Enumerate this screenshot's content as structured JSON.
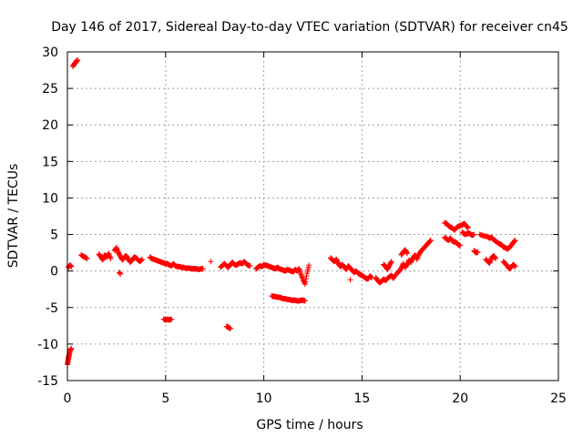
{
  "chart_data": {
    "type": "scatter",
    "title": "Day 146 of 2017, Sidereal Day-to-day VTEC variation (SDTVAR) for receiver cn45",
    "xlabel": "GPS time / hours",
    "ylabel": "SDTVAR / TECUs",
    "xlim": [
      0,
      25
    ],
    "ylim": [
      -15,
      30
    ],
    "xticks": [
      0,
      5,
      10,
      15,
      20,
      25
    ],
    "yticks": [
      -15,
      -10,
      -5,
      0,
      5,
      10,
      15,
      20,
      25,
      30
    ],
    "grid": true,
    "legend": "none",
    "marker": "+",
    "color": "#ff0000",
    "series": [
      {
        "name": "SDTVAR",
        "segments": [
          [
            [
              0.0,
              -12.8
            ],
            [
              0.03,
              -12.3
            ],
            [
              0.06,
              -11.8
            ],
            [
              0.1,
              -11.3
            ],
            [
              0.15,
              -10.8
            ],
            [
              0.2,
              -10.6
            ]
          ],
          [
            [
              0.05,
              0.5
            ],
            [
              0.1,
              0.7
            ],
            [
              0.15,
              0.8
            ],
            [
              0.2,
              0.6
            ]
          ],
          [
            [
              0.28,
              28.0
            ],
            [
              0.34,
              28.3
            ],
            [
              0.4,
              28.5
            ],
            [
              0.46,
              28.7
            ],
            [
              0.52,
              28.9
            ]
          ],
          [
            [
              0.7,
              2.2
            ],
            [
              0.8,
              2.0
            ],
            [
              0.9,
              1.9
            ],
            [
              1.0,
              1.7
            ]
          ],
          [
            [
              1.6,
              2.3
            ],
            [
              1.7,
              2.0
            ],
            [
              1.8,
              1.5
            ],
            [
              1.9,
              2.2
            ],
            [
              2.0,
              1.9
            ],
            [
              2.1,
              2.4
            ],
            [
              2.2,
              1.7
            ]
          ],
          [
            [
              2.4,
              2.8
            ],
            [
              2.5,
              3.2
            ],
            [
              2.6,
              2.5
            ],
            [
              2.7,
              2.0
            ],
            [
              2.8,
              1.5
            ],
            [
              2.9,
              1.9
            ],
            [
              3.0,
              2.1
            ],
            [
              3.1,
              1.6
            ],
            [
              3.2,
              1.2
            ],
            [
              3.3,
              1.5
            ],
            [
              3.4,
              1.9
            ],
            [
              3.5,
              1.8
            ],
            [
              3.6,
              1.5
            ],
            [
              3.7,
              1.3
            ],
            [
              3.8,
              1.6
            ]
          ],
          [
            [
              2.65,
              -0.2
            ],
            [
              2.7,
              -0.4
            ]
          ],
          [
            [
              4.2,
              1.9
            ],
            [
              4.3,
              1.7
            ],
            [
              4.4,
              1.6
            ],
            [
              4.5,
              1.5
            ],
            [
              4.6,
              1.4
            ],
            [
              4.7,
              1.3
            ],
            [
              4.8,
              1.2
            ],
            [
              4.9,
              1.1
            ],
            [
              5.0,
              1.0
            ],
            [
              5.1,
              1.0
            ],
            [
              5.2,
              0.8
            ],
            [
              5.3,
              0.7
            ],
            [
              5.4,
              1.0
            ],
            [
              5.5,
              0.7
            ],
            [
              5.6,
              0.6
            ],
            [
              5.7,
              0.6
            ],
            [
              5.8,
              0.5
            ],
            [
              5.9,
              0.5
            ],
            [
              6.0,
              0.4
            ],
            [
              6.1,
              0.4
            ],
            [
              6.2,
              0.4
            ],
            [
              6.3,
              0.3
            ],
            [
              6.4,
              0.3
            ],
            [
              6.5,
              0.3
            ],
            [
              6.6,
              0.3
            ],
            [
              6.7,
              0.2
            ],
            [
              6.8,
              0.3
            ],
            [
              6.9,
              0.3
            ]
          ],
          [
            [
              7.3,
              1.3
            ]
          ],
          [
            [
              4.9,
              -6.6
            ],
            [
              5.0,
              -6.7
            ],
            [
              5.1,
              -6.6
            ],
            [
              5.2,
              -6.7
            ],
            [
              5.3,
              -6.6
            ]
          ],
          [
            [
              7.8,
              0.5
            ],
            [
              7.9,
              0.8
            ],
            [
              8.0,
              1.0
            ],
            [
              8.1,
              0.7
            ],
            [
              8.2,
              0.5
            ],
            [
              8.3,
              0.9
            ],
            [
              8.4,
              1.2
            ],
            [
              8.5,
              0.9
            ],
            [
              8.6,
              0.8
            ],
            [
              8.7,
              1.0
            ],
            [
              8.8,
              1.1
            ],
            [
              8.9,
              1.0
            ],
            [
              9.0,
              1.3
            ],
            [
              9.1,
              1.0
            ],
            [
              9.2,
              0.8
            ],
            [
              9.3,
              0.7
            ]
          ],
          [
            [
              8.1,
              -7.6
            ],
            [
              8.2,
              -7.7
            ],
            [
              8.3,
              -7.9
            ]
          ],
          [
            [
              9.6,
              0.3
            ],
            [
              9.7,
              0.5
            ],
            [
              9.8,
              0.7
            ],
            [
              9.9,
              0.6
            ],
            [
              10.0,
              0.8
            ],
            [
              10.1,
              0.8
            ],
            [
              10.2,
              0.7
            ],
            [
              10.3,
              0.6
            ],
            [
              10.4,
              0.5
            ],
            [
              10.5,
              0.4
            ],
            [
              10.6,
              0.3
            ],
            [
              10.7,
              0.5
            ],
            [
              10.8,
              0.3
            ],
            [
              10.9,
              0.2
            ],
            [
              11.0,
              0.1
            ],
            [
              11.1,
              0.0
            ],
            [
              11.2,
              0.2
            ],
            [
              11.3,
              0.1
            ],
            [
              11.4,
              0.0
            ],
            [
              11.5,
              -0.1
            ],
            [
              11.6,
              0.2
            ],
            [
              11.7,
              0.0
            ],
            [
              11.8,
              0.3
            ],
            [
              11.9,
              -0.5
            ],
            [
              12.0,
              -1.2
            ],
            [
              12.1,
              -1.8
            ],
            [
              12.2,
              -0.3
            ],
            [
              12.3,
              0.8
            ]
          ],
          [
            [
              10.4,
              -3.4
            ],
            [
              10.5,
              -3.5
            ],
            [
              10.6,
              -3.5
            ],
            [
              10.7,
              -3.6
            ],
            [
              10.8,
              -3.6
            ],
            [
              10.9,
              -3.7
            ],
            [
              11.0,
              -3.8
            ],
            [
              11.1,
              -3.8
            ],
            [
              11.2,
              -3.9
            ],
            [
              11.3,
              -3.9
            ],
            [
              11.4,
              -4.0
            ],
            [
              11.5,
              -4.0
            ],
            [
              11.6,
              -4.0
            ],
            [
              11.7,
              -4.1
            ],
            [
              11.8,
              -4.1
            ],
            [
              11.9,
              -4.0
            ],
            [
              12.0,
              -4.0
            ],
            [
              12.1,
              -4.1
            ]
          ],
          [
            [
              13.4,
              1.8
            ],
            [
              13.5,
              1.5
            ],
            [
              13.6,
              1.3
            ],
            [
              13.7,
              1.6
            ],
            [
              13.8,
              1.0
            ],
            [
              13.9,
              0.6
            ],
            [
              14.0,
              0.9
            ],
            [
              14.1,
              0.5
            ],
            [
              14.2,
              0.2
            ],
            [
              14.3,
              0.7
            ],
            [
              14.4,
              0.4
            ],
            [
              14.5,
              0.1
            ],
            [
              14.6,
              -0.2
            ],
            [
              14.7,
              0.0
            ],
            [
              14.8,
              -0.3
            ],
            [
              14.9,
              -0.5
            ],
            [
              15.0,
              -0.6
            ],
            [
              15.1,
              -0.8
            ],
            [
              15.2,
              -1.0
            ],
            [
              15.3,
              -1.1
            ],
            [
              15.4,
              -0.7
            ],
            [
              15.5,
              -0.9
            ]
          ],
          [
            [
              14.4,
              -1.2
            ]
          ],
          [
            [
              15.7,
              -0.9
            ],
            [
              15.8,
              -1.3
            ],
            [
              15.9,
              -1.6
            ],
            [
              16.0,
              -1.4
            ],
            [
              16.1,
              -1.1
            ],
            [
              16.2,
              -1.3
            ],
            [
              16.3,
              -1.0
            ],
            [
              16.4,
              -0.8
            ],
            [
              16.5,
              -0.6
            ],
            [
              16.6,
              -1.0
            ],
            [
              16.7,
              -0.5
            ]
          ],
          [
            [
              16.1,
              0.9
            ],
            [
              16.2,
              0.6
            ],
            [
              16.3,
              0.2
            ],
            [
              16.4,
              0.8
            ],
            [
              16.5,
              1.3
            ]
          ],
          [
            [
              16.8,
              -0.3
            ],
            [
              16.9,
              0.0
            ],
            [
              17.0,
              0.4
            ],
            [
              17.1,
              1.0
            ],
            [
              17.2,
              0.5
            ],
            [
              17.3,
              0.9
            ],
            [
              17.4,
              1.5
            ],
            [
              17.5,
              1.2
            ],
            [
              17.6,
              1.8
            ],
            [
              17.7,
              2.2
            ],
            [
              17.8,
              1.6
            ],
            [
              17.9,
              2.3
            ],
            [
              18.0,
              2.7
            ],
            [
              18.1,
              3.0
            ],
            [
              18.2,
              3.3
            ],
            [
              18.3,
              3.6
            ],
            [
              18.4,
              3.9
            ],
            [
              18.5,
              4.2
            ]
          ],
          [
            [
              17.0,
              2.2
            ],
            [
              17.1,
              2.6
            ],
            [
              17.2,
              2.9
            ],
            [
              17.3,
              2.4
            ]
          ],
          [
            [
              19.2,
              6.6
            ],
            [
              19.3,
              6.5
            ],
            [
              19.4,
              6.2
            ],
            [
              19.5,
              6.0
            ],
            [
              19.6,
              5.9
            ],
            [
              19.7,
              5.6
            ],
            [
              19.8,
              5.9
            ],
            [
              19.9,
              6.1
            ],
            [
              20.0,
              6.2
            ],
            [
              20.1,
              6.3
            ],
            [
              20.2,
              6.5
            ],
            [
              20.3,
              6.2
            ],
            [
              20.4,
              5.9
            ]
          ],
          [
            [
              19.2,
              4.6
            ],
            [
              19.3,
              4.4
            ],
            [
              19.4,
              4.2
            ],
            [
              19.5,
              4.5
            ],
            [
              19.6,
              4.1
            ],
            [
              19.7,
              4.0
            ],
            [
              19.8,
              3.9
            ],
            [
              19.9,
              3.6
            ],
            [
              20.0,
              3.5
            ]
          ],
          [
            [
              20.1,
              5.3
            ],
            [
              20.2,
              5.1
            ],
            [
              20.3,
              5.0
            ],
            [
              20.4,
              5.2
            ],
            [
              20.5,
              5.1
            ],
            [
              20.6,
              4.9
            ],
            [
              20.7,
              5.0
            ]
          ],
          [
            [
              20.7,
              2.8
            ],
            [
              20.8,
              2.5
            ],
            [
              20.9,
              2.6
            ]
          ],
          [
            [
              21.0,
              5.0
            ],
            [
              21.2,
              4.8
            ],
            [
              21.4,
              4.7
            ],
            [
              21.5,
              4.5
            ],
            [
              21.6,
              4.6
            ],
            [
              21.7,
              4.3
            ],
            [
              21.8,
              4.1
            ],
            [
              21.9,
              3.9
            ],
            [
              22.0,
              3.7
            ],
            [
              22.1,
              3.6
            ],
            [
              22.2,
              3.3
            ],
            [
              22.3,
              3.2
            ],
            [
              22.4,
              3.0
            ],
            [
              22.5,
              3.2
            ],
            [
              22.6,
              3.5
            ],
            [
              22.7,
              3.9
            ],
            [
              22.8,
              4.2
            ]
          ],
          [
            [
              21.3,
              1.6
            ],
            [
              21.4,
              1.3
            ],
            [
              21.5,
              1.1
            ],
            [
              21.6,
              1.8
            ],
            [
              21.7,
              2.1
            ],
            [
              21.8,
              1.7
            ]
          ],
          [
            [
              22.2,
              1.3
            ],
            [
              22.3,
              1.0
            ],
            [
              22.4,
              0.7
            ],
            [
              22.5,
              0.3
            ],
            [
              22.6,
              0.5
            ],
            [
              22.7,
              0.9
            ],
            [
              22.8,
              0.6
            ]
          ]
        ]
      }
    ]
  }
}
